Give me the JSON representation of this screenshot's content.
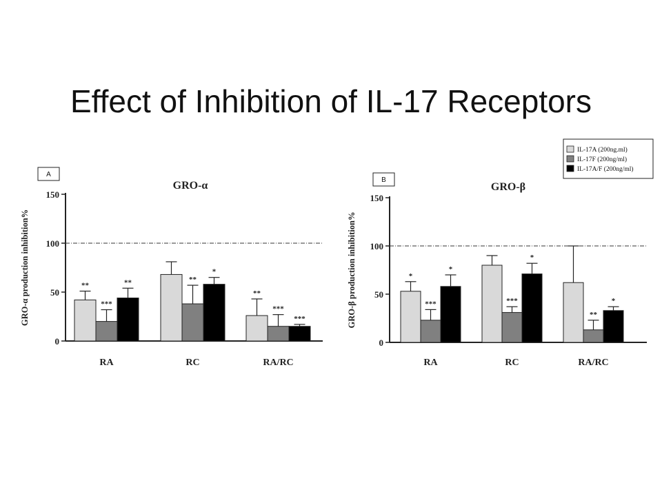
{
  "slide_title": "Effect of Inhibition of IL-17 Receptors",
  "legend": [
    {
      "label": "IL-17A (200ng.ml)",
      "color": "#d9d9d9"
    },
    {
      "label": "IL-17F (200ng/ml)",
      "color": "#808080"
    },
    {
      "label": "IL-17A/F (200ng/ml)",
      "color": "#000000"
    }
  ],
  "chart_data": [
    {
      "type": "bar",
      "panel_label": "A",
      "title": "GRO-α",
      "ylabel": "GRO-α production inhibition%",
      "ylim": [
        0,
        150
      ],
      "yticks": [
        0,
        50,
        100,
        150
      ],
      "reference_line": 100,
      "categories": [
        "RA",
        "RC",
        "RA/RC"
      ],
      "series": [
        {
          "name": "IL-17A (200ng.ml)",
          "values": [
            42,
            68,
            26
          ],
          "errors": [
            9,
            13,
            17
          ],
          "significance": [
            "**",
            "",
            "**"
          ]
        },
        {
          "name": "IL-17F (200ng/ml)",
          "values": [
            20,
            38,
            15
          ],
          "errors": [
            12,
            19,
            12
          ],
          "significance": [
            "***",
            "**",
            "***"
          ]
        },
        {
          "name": "IL-17A/F (200ng/ml)",
          "values": [
            44,
            58,
            15
          ],
          "errors": [
            10,
            7,
            2
          ],
          "significance": [
            "**",
            "*",
            "***"
          ]
        }
      ]
    },
    {
      "type": "bar",
      "panel_label": "B",
      "title": "GRO-β",
      "ylabel": "GRO-β production inhibition%",
      "ylim": [
        0,
        150
      ],
      "yticks": [
        0,
        50,
        100,
        150
      ],
      "reference_line": 100,
      "categories": [
        "RA",
        "RC",
        "RA/RC"
      ],
      "series": [
        {
          "name": "IL-17A (200ng.ml)",
          "values": [
            53,
            80,
            62
          ],
          "errors": [
            10,
            10,
            38
          ],
          "significance": [
            "*",
            "",
            ""
          ]
        },
        {
          "name": "IL-17F (200ng/ml)",
          "values": [
            23,
            31,
            13
          ],
          "errors": [
            11,
            6,
            10
          ],
          "significance": [
            "***",
            "***",
            "**"
          ]
        },
        {
          "name": "IL-17A/F (200ng/ml)",
          "values": [
            58,
            71,
            33
          ],
          "errors": [
            12,
            11,
            4
          ],
          "significance": [
            "*",
            "*",
            "*"
          ]
        }
      ]
    }
  ]
}
